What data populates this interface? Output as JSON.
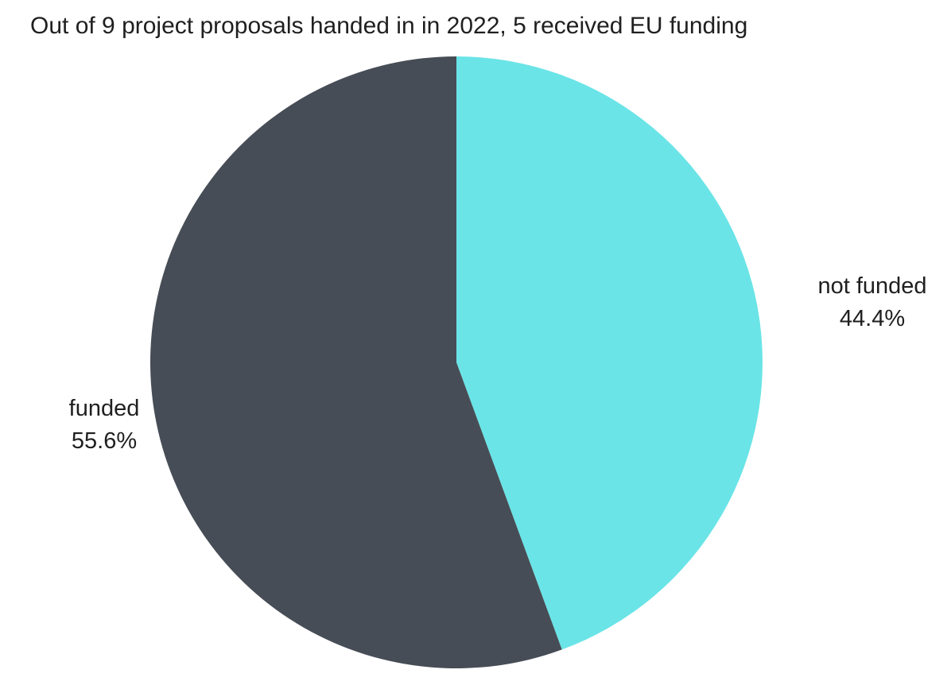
{
  "chart_data": {
    "type": "pie",
    "title": "Out of 9 project proposals handed in in 2022, 5 received EU funding",
    "slices": [
      {
        "label": "not funded",
        "value": 44.4,
        "value_label": "44.4%",
        "color": "#6ae4e7"
      },
      {
        "label": "funded",
        "value": 55.6,
        "value_label": "55.6%",
        "color": "#474d56"
      }
    ],
    "start_angle": "12 o'clock",
    "direction": "clockwise",
    "legend": "none"
  }
}
